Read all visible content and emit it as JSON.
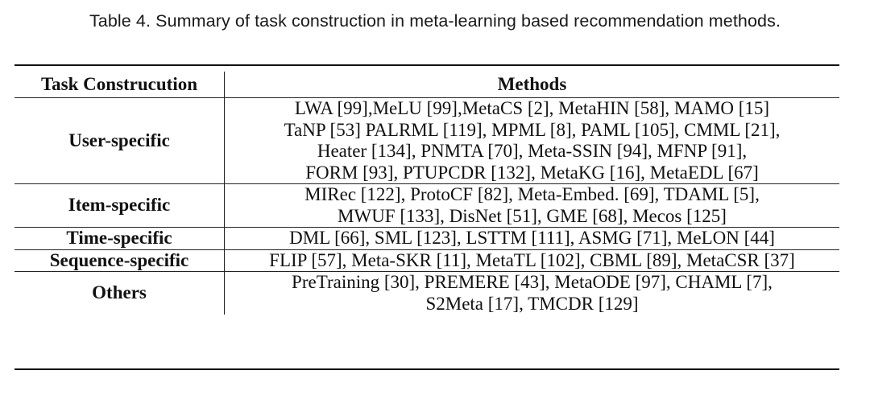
{
  "caption": "Table 4.  Summary of task construction in meta-learning based recommendation methods.",
  "table": {
    "headers": {
      "construction": "Task Construcution",
      "methods": "Methods"
    },
    "rows": [
      {
        "label": "User-specific",
        "lines": [
          "LWA [99],MeLU [99],MetaCS [2], MetaHIN [58], MAMO [15]",
          "TaNP [53] PALRML [119], MPML [8], PAML [105], CMML [21],",
          "Heater [134], PNMTA [70], Meta-SSIN [94], MFNP [91],",
          "FORM [93], PTUPCDR [132], MetaKG [16], MetaEDL [67]"
        ]
      },
      {
        "label": "Item-specific",
        "lines": [
          "MIRec [122], ProtoCF [82], Meta-Embed. [69], TDAML [5],",
          "MWUF [133], DisNet [51], GME [68], Mecos [125]"
        ]
      },
      {
        "label": "Time-specific",
        "lines": [
          "DML [66], SML [123], LSTTM [111], ASMG [71], MeLON [44]"
        ]
      },
      {
        "label": "Sequence-specific",
        "lines": [
          "FLIP [57], Meta-SKR [11], MetaTL [102], CBML [89], MetaCSR [37]"
        ]
      },
      {
        "label": "Others",
        "lines": [
          "PreTraining [30], PREMERE [43], MetaODE [97], CHAML [7],",
          "S2Meta [17], TMCDR [129]"
        ]
      }
    ]
  }
}
